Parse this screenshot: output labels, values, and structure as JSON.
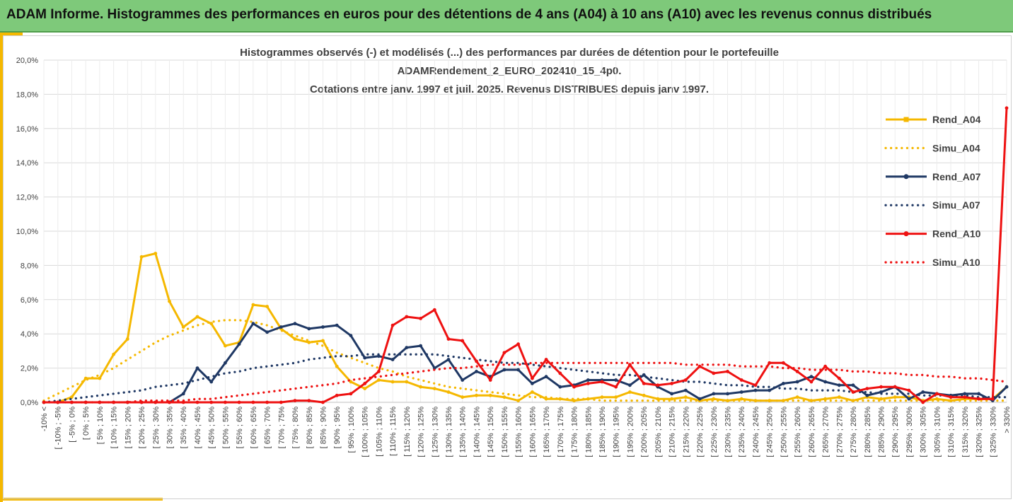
{
  "banner": {
    "title": "ADAM Informe. Histogrammes des performances en euros pour des détentions de 4 ans (A04) à 10 ans (A10) avec les revenus connus distribués"
  },
  "colors": {
    "yellow": "#f5b800",
    "navy": "#1f3864",
    "red": "#ee1111",
    "banner": "#7ec97a"
  },
  "chart_data": {
    "type": "line",
    "title": [
      "Histogrammes observés (-) et modélisés (...) des performances par durées de détention pour le portefeuille",
      "ADAMRendement_2_EURO_202410_15_4p0.",
      "Cotations entre janv. 1997 et juil. 2025. Revenus DISTRIBUES depuis janv 1997."
    ],
    "ylim": [
      0,
      20
    ],
    "y_ticks": [
      "0,0%",
      "2,0%",
      "4,0%",
      "6,0%",
      "8,0%",
      "10,0%",
      "12,0%",
      "14,0%",
      "16,0%",
      "18,0%",
      "20,0%"
    ],
    "grid": true,
    "legend_position": "right",
    "categories": [
      "-10% <",
      "[ -10% ; -5%",
      "[ -5% ; 0%",
      "[ 0% ; 5%",
      "[ 5% ; 10%",
      "[ 10% ; 15%",
      "[ 15% ; 20%",
      "[ 20% ; 25%",
      "[ 25% ; 30%",
      "[ 30% ; 35%",
      "[ 35% ; 40%",
      "[ 40% ; 45%",
      "[ 45% ; 50%",
      "[ 50% ; 55%",
      "[ 55% ; 60%",
      "[ 60% ; 65%",
      "[ 65% ; 70%",
      "[ 70% ; 75%",
      "[ 75% ; 80%",
      "[ 80% ; 85%",
      "[ 85% ; 90%",
      "[ 90% ; 95%",
      "[ 95% ; 100%",
      "[ 100% ; 105%",
      "[ 105% ; 110%",
      "[ 110% ; 115%",
      "[ 115% ; 120%",
      "[ 120% ; 125%",
      "[ 125% ; 130%",
      "[ 130% ; 135%",
      "[ 135% ; 140%",
      "[ 140% ; 145%",
      "[ 145% ; 150%",
      "[ 150% ; 155%",
      "[ 155% ; 160%",
      "[ 160% ; 165%",
      "[ 165% ; 170%",
      "[ 170% ; 175%",
      "[ 175% ; 180%",
      "[ 180% ; 185%",
      "[ 185% ; 190%",
      "[ 190% ; 195%",
      "[ 195% ; 200%",
      "[ 200% ; 205%",
      "[ 205% ; 210%",
      "[ 210% ; 215%",
      "[ 215% ; 220%",
      "[ 220% ; 225%",
      "[ 225% ; 230%",
      "[ 230% ; 235%",
      "[ 235% ; 240%",
      "[ 240% ; 245%",
      "[ 245% ; 250%",
      "[ 250% ; 255%",
      "[ 255% ; 260%",
      "[ 260% ; 265%",
      "[ 265% ; 270%",
      "[ 270% ; 275%",
      "[ 275% ; 280%",
      "[ 280% ; 285%",
      "[ 285% ; 290%",
      "[ 290% ; 295%",
      "[ 295% ; 300%",
      "[ 300% ; 305%",
      "[ 305% ; 310%",
      "[ 310% ; 315%",
      "[ 315% ; 320%",
      "[ 320% ; 325%",
      "[ 325% ; 330%",
      "> 330%"
    ],
    "series": [
      {
        "name": "Rend_A04",
        "style": "solid-marker",
        "color": "#f5b800",
        "values": [
          0,
          0,
          0.3,
          1.4,
          1.4,
          2.8,
          3.7,
          8.5,
          8.7,
          5.9,
          4.4,
          5.0,
          4.6,
          3.3,
          3.5,
          5.7,
          5.6,
          4.3,
          3.7,
          3.5,
          3.6,
          2.1,
          1.2,
          0.8,
          1.3,
          1.2,
          1.2,
          0.9,
          0.8,
          0.6,
          0.3,
          0.4,
          0.4,
          0.3,
          0.1,
          0.6,
          0.2,
          0.2,
          0.1,
          0.2,
          0.3,
          0.3,
          0.6,
          0.4,
          0.2,
          0.2,
          0.3,
          0.1,
          0.2,
          0.1,
          0.2,
          0.1,
          0.1,
          0.1,
          0.3,
          0.1,
          0.2,
          0.3,
          0.1,
          0.3,
          0.2,
          0.3,
          0.3,
          0.1,
          0.2,
          0.1,
          0.2,
          0.2,
          0.2,
          0.9
        ]
      },
      {
        "name": "Simu_A04",
        "style": "dotted",
        "color": "#f5b800",
        "values": [
          0.1,
          0.5,
          0.9,
          1.3,
          1.6,
          2.0,
          2.5,
          3.0,
          3.5,
          3.9,
          4.2,
          4.5,
          4.7,
          4.8,
          4.8,
          4.7,
          4.5,
          4.2,
          3.9,
          3.6,
          3.3,
          2.9,
          2.6,
          2.3,
          2.0,
          1.8,
          1.5,
          1.3,
          1.1,
          0.9,
          0.8,
          0.7,
          0.6,
          0.5,
          0.4,
          0.3,
          0.3,
          0.2,
          0.2,
          0.2,
          0.1,
          0.1,
          0.1,
          0.1,
          0.1,
          0.1,
          0.1,
          0.1,
          0.1,
          0.1,
          0.1,
          0.1,
          0.1,
          0.1,
          0.1,
          0.1,
          0.1,
          0.1,
          0.1,
          0.1,
          0.1,
          0.1,
          0.1,
          0.1,
          0.1,
          0.1,
          0.1,
          0.1,
          0.1,
          0.1
        ]
      },
      {
        "name": "Rend_A07",
        "style": "solid-marker",
        "color": "#1f3864",
        "values": [
          0,
          0,
          0,
          0,
          0,
          0,
          0,
          0,
          0,
          0,
          0.5,
          2.0,
          1.2,
          2.3,
          3.4,
          4.6,
          4.1,
          4.4,
          4.6,
          4.3,
          4.4,
          4.5,
          3.9,
          2.6,
          2.7,
          2.5,
          3.2,
          3.3,
          2.0,
          2.5,
          1.3,
          1.8,
          1.5,
          1.9,
          1.9,
          1.1,
          1.5,
          0.9,
          1.0,
          1.3,
          1.3,
          1.3,
          1.0,
          1.6,
          0.9,
          0.5,
          0.7,
          0.2,
          0.5,
          0.5,
          0.6,
          0.7,
          0.7,
          1.1,
          1.2,
          1.5,
          1.2,
          1.0,
          1.0,
          0.4,
          0.6,
          0.9,
          0.2,
          0.6,
          0.5,
          0.4,
          0.5,
          0.5,
          0.1,
          0.9
        ]
      },
      {
        "name": "Simu_A07",
        "style": "dotted",
        "color": "#1f3864",
        "values": [
          0.0,
          0.1,
          0.2,
          0.3,
          0.4,
          0.5,
          0.6,
          0.7,
          0.9,
          1.0,
          1.1,
          1.3,
          1.5,
          1.7,
          1.8,
          2.0,
          2.1,
          2.2,
          2.3,
          2.5,
          2.6,
          2.7,
          2.7,
          2.8,
          2.8,
          2.8,
          2.8,
          2.8,
          2.8,
          2.7,
          2.6,
          2.5,
          2.4,
          2.3,
          2.3,
          2.2,
          2.1,
          2.0,
          1.9,
          1.8,
          1.7,
          1.6,
          1.6,
          1.5,
          1.4,
          1.3,
          1.2,
          1.2,
          1.1,
          1.0,
          1.0,
          0.9,
          0.9,
          0.8,
          0.8,
          0.7,
          0.7,
          0.7,
          0.6,
          0.6,
          0.5,
          0.5,
          0.5,
          0.4,
          0.4,
          0.4,
          0.4,
          0.3,
          0.3,
          0.3
        ]
      },
      {
        "name": "Rend_A10",
        "style": "solid-marker",
        "color": "#ee1111",
        "values": [
          0,
          0,
          0,
          0,
          0,
          0,
          0,
          0,
          0,
          0,
          0,
          0,
          0,
          0,
          0,
          0,
          0,
          0,
          0.1,
          0.1,
          0,
          0.4,
          0.5,
          1.1,
          1.8,
          4.5,
          5.0,
          4.9,
          5.4,
          3.7,
          3.6,
          2.4,
          1.3,
          2.9,
          3.4,
          1.4,
          2.5,
          1.7,
          0.9,
          1.1,
          1.2,
          0.9,
          2.2,
          1.1,
          1.0,
          1.1,
          1.3,
          2.1,
          1.7,
          1.8,
          1.3,
          1.0,
          2.3,
          2.3,
          1.8,
          1.2,
          2.1,
          1.4,
          0.6,
          0.8,
          0.9,
          0.9,
          0.7,
          0.0,
          0.5,
          0.3,
          0.3,
          0.2,
          0.2,
          17.2
        ]
      },
      {
        "name": "Simu_A10",
        "style": "dotted",
        "color": "#ee1111",
        "values": [
          0.0,
          0.0,
          0.0,
          0.0,
          0.0,
          0.0,
          0.0,
          0.1,
          0.1,
          0.1,
          0.1,
          0.2,
          0.2,
          0.3,
          0.4,
          0.5,
          0.6,
          0.7,
          0.8,
          0.9,
          1.0,
          1.1,
          1.3,
          1.4,
          1.5,
          1.6,
          1.7,
          1.8,
          1.9,
          2.0,
          2.0,
          2.1,
          2.2,
          2.2,
          2.2,
          2.3,
          2.3,
          2.3,
          2.3,
          2.3,
          2.3,
          2.3,
          2.3,
          2.3,
          2.3,
          2.3,
          2.2,
          2.2,
          2.2,
          2.2,
          2.1,
          2.1,
          2.1,
          2.0,
          2.0,
          1.9,
          1.9,
          1.9,
          1.8,
          1.8,
          1.7,
          1.7,
          1.6,
          1.6,
          1.5,
          1.5,
          1.4,
          1.4,
          1.3,
          1.2
        ]
      }
    ]
  }
}
